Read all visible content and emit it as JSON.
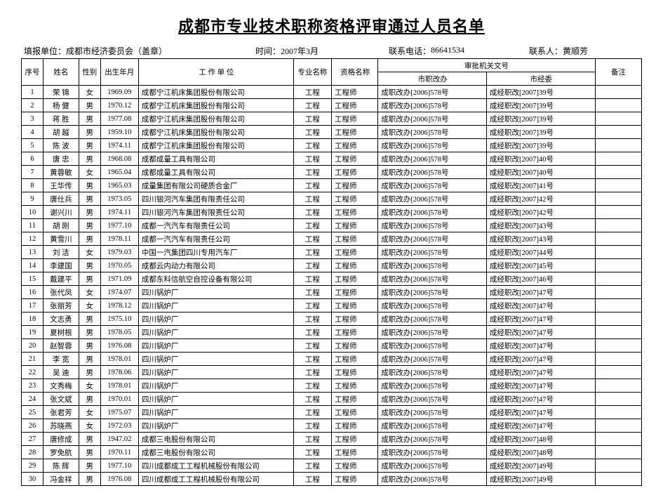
{
  "title": "成都市专业技术职称资格评审通过人员名单",
  "meta": {
    "org_label": "填报单位：",
    "org_value": "成都市经济委员会（盖章）",
    "time_label": "时间：",
    "time_value": "2007年3月",
    "phone_label": "联系电话：",
    "phone_value": "86641534",
    "contact_label": "联系人：",
    "contact_value": "黄顺芳"
  },
  "headers": {
    "seq": "序号",
    "name": "姓名",
    "gender": "性别",
    "birth": "出生年月",
    "unit": "工 作 单 位",
    "prof": "专业名称",
    "qual": "资格名称",
    "doc_group": "审批机关文号",
    "doc1": "市职改办",
    "doc2": "市经委",
    "remark": "备注"
  },
  "rows": [
    {
      "seq": "1",
      "name": "荣 锦",
      "gender": "女",
      "birth": "1969.09",
      "unit": "成都宁江机床集团股份有限公司",
      "prof": "工程",
      "qual": "工程师",
      "doc1": "成职改办[2006]578号",
      "doc2": "成经职改[2007]39号",
      "remark": ""
    },
    {
      "seq": "2",
      "name": "杨 健",
      "gender": "男",
      "birth": "1970.12",
      "unit": "成都宁江机床集团股份有限公司",
      "prof": "工程",
      "qual": "工程师",
      "doc1": "成职改办[2006]578号",
      "doc2": "成经职改[2007]39号",
      "remark": ""
    },
    {
      "seq": "3",
      "name": "蒋 胜",
      "gender": "男",
      "birth": "1977.08",
      "unit": "成都宁江机床集团股份有限公司",
      "prof": "工程",
      "qual": "工程师",
      "doc1": "成职改办[2006]578号",
      "doc2": "成经职改[2007]39号",
      "remark": ""
    },
    {
      "seq": "4",
      "name": "胡 越",
      "gender": "男",
      "birth": "1959.10",
      "unit": "成都宁江机床集团股份有限公司",
      "prof": "工程",
      "qual": "工程师",
      "doc1": "成职改办[2006]578号",
      "doc2": "成经职改[2007]39号",
      "remark": ""
    },
    {
      "seq": "5",
      "name": "陈 波",
      "gender": "男",
      "birth": "1974.11",
      "unit": "成都宁江机床集团股份有限公司",
      "prof": "工程",
      "qual": "工程师",
      "doc1": "成职改办[2006]578号",
      "doc2": "成经职改[2007]39号",
      "remark": ""
    },
    {
      "seq": "6",
      "name": "唐 忠",
      "gender": "男",
      "birth": "1968.08",
      "unit": "成都成量工具有限公司",
      "prof": "工程",
      "qual": "工程师",
      "doc1": "成职改办[2006]578号",
      "doc2": "成经职改[2007]40号",
      "remark": ""
    },
    {
      "seq": "7",
      "name": "黄蓉敏",
      "gender": "女",
      "birth": "1965.04",
      "unit": "成都成量工具有限公司",
      "prof": "工程",
      "qual": "工程师",
      "doc1": "成职改办[2006]578号",
      "doc2": "成经职改[2007]40号",
      "remark": ""
    },
    {
      "seq": "8",
      "name": "王华传",
      "gender": "男",
      "birth": "1965.03",
      "unit": "成量集团有限公司硬质合金厂",
      "prof": "工程",
      "qual": "工程师",
      "doc1": "成职改办[2006]578号",
      "doc2": "成经职改[2007]41号",
      "remark": ""
    },
    {
      "seq": "9",
      "name": "唐仕兵",
      "gender": "男",
      "birth": "1973.05",
      "unit": "四川银河汽车集团有限责任公司",
      "prof": "工程",
      "qual": "工程师",
      "doc1": "成职改办[2006]578号",
      "doc2": "成经职改[2007]42号",
      "remark": ""
    },
    {
      "seq": "10",
      "name": "谢兴川",
      "gender": "男",
      "birth": "1974.11",
      "unit": "四川银河汽车集团有限责任公司",
      "prof": "工程",
      "qual": "工程师",
      "doc1": "成职改办[2006]578号",
      "doc2": "成经职改[2007]42号",
      "remark": ""
    },
    {
      "seq": "11",
      "name": "胡 刚",
      "gender": "男",
      "birth": "1977.10",
      "unit": "成都一汽汽车有限责任公司",
      "prof": "工程",
      "qual": "工程师",
      "doc1": "成职改办[2006]578号",
      "doc2": "成经职改[2007]43号",
      "remark": ""
    },
    {
      "seq": "12",
      "name": "黄雪川",
      "gender": "男",
      "birth": "1978.11",
      "unit": "成都一汽汽车有限责任公司",
      "prof": "工程",
      "qual": "工程师",
      "doc1": "成职改办[2006]578号",
      "doc2": "成经职改[2007]43号",
      "remark": ""
    },
    {
      "seq": "13",
      "name": "刘 洁",
      "gender": "女",
      "birth": "1979.03",
      "unit": "中国一汽集团四川专用汽车厂",
      "prof": "工程",
      "qual": "工程师",
      "doc1": "成职改办[2006]578号",
      "doc2": "成经职改[2007]44号",
      "remark": ""
    },
    {
      "seq": "14",
      "name": "李建国",
      "gender": "男",
      "birth": "1970.05",
      "unit": "成都云内动力有限公司",
      "prof": "工程",
      "qual": "工程师",
      "doc1": "成职改办[2006]578号",
      "doc2": "成经职改[2007]45号",
      "remark": ""
    },
    {
      "seq": "15",
      "name": "戴建平",
      "gender": "男",
      "birth": "1971.09",
      "unit": "成都东科信航空自控设备有限公司",
      "prof": "工程",
      "qual": "工程师",
      "doc1": "成职改办[2006]578号",
      "doc2": "成经职改[2007]46号",
      "remark": ""
    },
    {
      "seq": "16",
      "name": "张代凤",
      "gender": "女",
      "birth": "1974.07",
      "unit": "四川锅炉厂",
      "prof": "工程",
      "qual": "工程师",
      "doc1": "成职改办[2006]578号",
      "doc2": "成经职改[2007]47号",
      "remark": ""
    },
    {
      "seq": "17",
      "name": "张丽芳",
      "gender": "女",
      "birth": "1978.12",
      "unit": "四川锅炉厂",
      "prof": "工程",
      "qual": "工程师",
      "doc1": "成职改办[2006]578号",
      "doc2": "成经职改[2007]47号",
      "remark": ""
    },
    {
      "seq": "18",
      "name": "文志勇",
      "gender": "男",
      "birth": "1975.10",
      "unit": "四川锅炉厂",
      "prof": "工程",
      "qual": "工程师",
      "doc1": "成职改办[2006]578号",
      "doc2": "成经职改[2007]47号",
      "remark": ""
    },
    {
      "seq": "19",
      "name": "夏树根",
      "gender": "男",
      "birth": "1978.05",
      "unit": "四川锅炉厂",
      "prof": "工程",
      "qual": "工程师",
      "doc1": "成职改办[2006]578号",
      "doc2": "成经职改[2007]47号",
      "remark": ""
    },
    {
      "seq": "20",
      "name": "赵智蓉",
      "gender": "男",
      "birth": "1976.08",
      "unit": "四川锅炉厂",
      "prof": "工程",
      "qual": "工程师",
      "doc1": "成职改办[2006]578号",
      "doc2": "成经职改[2007]47号",
      "remark": ""
    },
    {
      "seq": "21",
      "name": "李 宽",
      "gender": "男",
      "birth": "1978.01",
      "unit": "四川锅炉厂",
      "prof": "工程",
      "qual": "工程师",
      "doc1": "成职改办[2006]578号",
      "doc2": "成经职改[2007]47号",
      "remark": ""
    },
    {
      "seq": "22",
      "name": "吴 迪",
      "gender": "男",
      "birth": "1978.06",
      "unit": "四川锅炉厂",
      "prof": "工程",
      "qual": "工程师",
      "doc1": "成职改办[2006]578号",
      "doc2": "成经职改[2007]47号",
      "remark": ""
    },
    {
      "seq": "23",
      "name": "文秀梅",
      "gender": "女",
      "birth": "1978.01",
      "unit": "四川锅炉厂",
      "prof": "工程",
      "qual": "工程师",
      "doc1": "成职改办[2006]578号",
      "doc2": "成经职改[2007]47号",
      "remark": ""
    },
    {
      "seq": "24",
      "name": "张文斌",
      "gender": "男",
      "birth": "1970.01",
      "unit": "四川锅炉厂",
      "prof": "工程",
      "qual": "工程师",
      "doc1": "成职改办[2006]578号",
      "doc2": "成经职改[2007]47号",
      "remark": ""
    },
    {
      "seq": "25",
      "name": "张君芳",
      "gender": "女",
      "birth": "1975.07",
      "unit": "四川锅炉厂",
      "prof": "工程",
      "qual": "工程师",
      "doc1": "成职改办[2006]578号",
      "doc2": "成经职改[2007]47号",
      "remark": ""
    },
    {
      "seq": "26",
      "name": "苏晓燕",
      "gender": "女",
      "birth": "1972.03",
      "unit": "四川锅炉厂",
      "prof": "工程",
      "qual": "工程师",
      "doc1": "成职改办[2006]578号",
      "doc2": "成经职改[2007]47号",
      "remark": ""
    },
    {
      "seq": "27",
      "name": "唐修成",
      "gender": "男",
      "birth": "1947.02",
      "unit": "成都三电股份有限公司",
      "prof": "工程",
      "qual": "工程师",
      "doc1": "成职改办[2006]578号",
      "doc2": "成经职改[2007]48号",
      "remark": ""
    },
    {
      "seq": "28",
      "name": "罗免航",
      "gender": "男",
      "birth": "1970.11",
      "unit": "成都三电股份有限公司",
      "prof": "工程",
      "qual": "工程师",
      "doc1": "成职改办[2006]578号",
      "doc2": "成经职改[2007]48号",
      "remark": ""
    },
    {
      "seq": "29",
      "name": "陈 辉",
      "gender": "男",
      "birth": "1977.10",
      "unit": "四川成都成工工程机械股份有限公司",
      "prof": "工程",
      "qual": "工程师",
      "doc1": "成职改办[2006]578号",
      "doc2": "成经职改[2007]49号",
      "remark": ""
    },
    {
      "seq": "30",
      "name": "冯金祥",
      "gender": "男",
      "birth": "1976.08",
      "unit": "四川成都成工工程机械股份有限公司",
      "prof": "工程",
      "qual": "工程师",
      "doc1": "成职改办[2006]578号",
      "doc2": "成经职改[2007]49号",
      "remark": ""
    }
  ]
}
